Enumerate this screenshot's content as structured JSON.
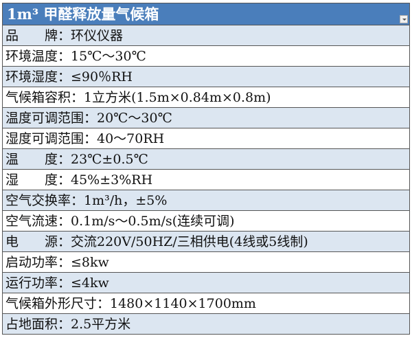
{
  "title": "1m³ 甲醛释放量气候箱",
  "rows": [
    "品　　牌：环仪仪器",
    "环境温度：15℃～30℃",
    "环境湿度：≤90％RH",
    "气候箱容积：1立方米(1.5m×0.84m×0.8m)",
    "温度可调范围：20℃～30℃",
    "湿度可调范围：40～70RH",
    "温　　度：23℃±0.5℃",
    "湿　　度：45%±3%RH",
    "空气交换率：1m³/h，±5%",
    "空气流速：0.1m/s～0.5m/s(连续可调)",
    "电　　源：交流220V/50HZ/三相供电(4线或5线制)",
    "启动功率：≤8kw",
    "运行功率：≤4kw",
    "气候箱外形尺寸：1480×1140×1700mm",
    "占地面积：2.5平方米"
  ],
  "colors": {
    "header": "#4a7ebb",
    "band": "#dce6f1"
  }
}
